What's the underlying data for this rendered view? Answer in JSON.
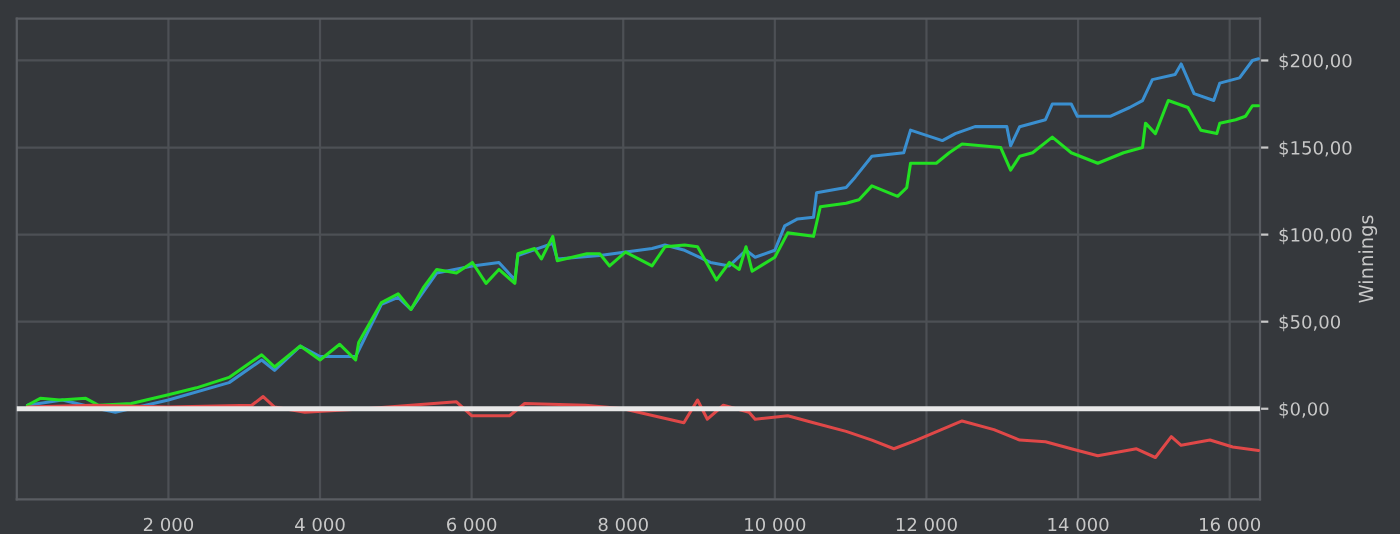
{
  "chart_data": {
    "type": "line",
    "ylabel": "Winnings",
    "xlim": [
      0,
      16400
    ],
    "xticks": [
      {
        "value": 2000,
        "label": "2 000"
      },
      {
        "value": 4000,
        "label": "4 000"
      },
      {
        "value": 6000,
        "label": "6 000"
      },
      {
        "value": 8000,
        "label": "8 000"
      },
      {
        "value": 10000,
        "label": "10 000"
      },
      {
        "value": 12000,
        "label": "12 000"
      },
      {
        "value": 14000,
        "label": "14 000"
      },
      {
        "value": 16000,
        "label": "16 000"
      }
    ],
    "ylim": [
      -52,
      224
    ],
    "yticks": [
      {
        "value": 0,
        "label": "$0,00"
      },
      {
        "value": 50,
        "label": "$50,00"
      },
      {
        "value": 100,
        "label": "$100,00"
      },
      {
        "value": 150,
        "label": "$150,00"
      },
      {
        "value": 200,
        "label": "$200,00"
      }
    ],
    "grid": true,
    "legend": false,
    "ref_lines": [
      {
        "axis": "y",
        "value": 0,
        "color": "#e8e8e8"
      }
    ],
    "series": [
      {
        "color": "#3a8fd0",
        "x": [
          140,
          600,
          1080,
          1300,
          2000,
          2800,
          3230,
          3400,
          3740,
          4000,
          4470,
          4810,
          5030,
          5200,
          5540,
          6010,
          6360,
          6570,
          6610,
          7070,
          7130,
          7690,
          8380,
          8550,
          8810,
          9150,
          9400,
          9620,
          9740,
          10000,
          10130,
          10300,
          10510,
          10550,
          10940,
          11060,
          11280,
          11700,
          11790,
          12210,
          12380,
          12640,
          13060,
          13110,
          13230,
          13570,
          13660,
          13910,
          13990,
          14430,
          14680,
          14850,
          14980,
          15280,
          15360,
          15530,
          15790,
          15870,
          16130,
          16300,
          16380
        ],
        "values": [
          2,
          5,
          0,
          -2,
          5,
          15,
          28,
          22,
          36,
          30,
          30,
          60,
          64,
          57,
          78,
          82,
          84,
          74,
          88,
          95,
          86,
          88,
          92,
          94,
          91,
          84,
          82,
          91,
          87,
          91,
          105,
          109,
          110,
          124,
          127,
          133,
          145,
          147,
          160,
          154,
          158,
          162,
          162,
          151,
          162,
          166,
          175,
          175,
          168,
          168,
          173,
          177,
          189,
          192,
          198,
          181,
          177,
          187,
          190,
          200,
          201
        ]
      },
      {
        "color": "#22e022",
        "x": [
          140,
          310,
          570,
          910,
          1080,
          1510,
          2000,
          2370,
          2800,
          3230,
          3400,
          3740,
          4000,
          4260,
          4470,
          4510,
          4810,
          5030,
          5200,
          5370,
          5540,
          5800,
          6010,
          6190,
          6360,
          6570,
          6610,
          6830,
          6920,
          7070,
          7130,
          7520,
          7690,
          7820,
          8030,
          8380,
          8550,
          8810,
          8980,
          9230,
          9400,
          9530,
          9620,
          9700,
          10000,
          10170,
          10510,
          10600,
          10940,
          11110,
          11280,
          11620,
          11740,
          11790,
          12130,
          12300,
          12470,
          12980,
          13110,
          13230,
          13400,
          13660,
          13910,
          14260,
          14600,
          14850,
          14890,
          15020,
          15190,
          15450,
          15620,
          15830,
          15870,
          16080,
          16210,
          16300,
          16380
        ],
        "values": [
          2,
          6,
          5,
          6,
          2,
          3,
          8,
          12,
          18,
          31,
          24,
          36,
          28,
          37,
          28,
          38,
          61,
          66,
          57,
          70,
          80,
          78,
          84,
          72,
          80,
          72,
          89,
          92,
          86,
          99,
          85,
          89,
          89,
          82,
          90,
          82,
          93,
          94,
          93,
          74,
          84,
          80,
          93,
          79,
          87,
          101,
          99,
          116,
          118,
          120,
          128,
          122,
          127,
          141,
          141,
          147,
          152,
          150,
          137,
          145,
          147,
          156,
          147,
          141,
          147,
          150,
          164,
          158,
          177,
          173,
          160,
          158,
          164,
          166,
          168,
          174,
          174
        ]
      },
      {
        "color": "#e04848",
        "x": [
          140,
          1000,
          2000,
          3100,
          3250,
          3400,
          3800,
          4600,
          5500,
          5800,
          6000,
          6500,
          6700,
          7500,
          8000,
          8400,
          8800,
          8980,
          9110,
          9320,
          9660,
          9740,
          10170,
          10510,
          10940,
          11280,
          11570,
          11870,
          12470,
          12890,
          13230,
          13570,
          13910,
          14260,
          14770,
          15020,
          15230,
          15360,
          15740,
          16040,
          16380
        ],
        "values": [
          1,
          2,
          1,
          2,
          7,
          1,
          -2,
          0,
          3,
          4,
          -4,
          -4,
          3,
          2,
          0,
          -4,
          -8,
          5,
          -6,
          2,
          -2,
          -6,
          -4,
          -8,
          -13,
          -18,
          -23,
          -18,
          -7,
          -12,
          -18,
          -19,
          -23,
          -27,
          -23,
          -28,
          -16,
          -21,
          -18,
          -22,
          -24
        ]
      }
    ]
  }
}
